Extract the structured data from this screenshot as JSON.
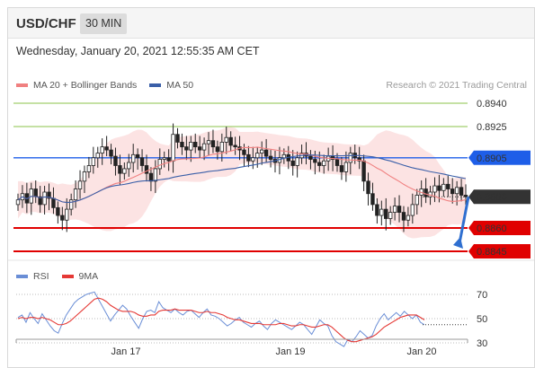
{
  "header": {
    "pair": "USD/CHF",
    "timeframe": "30 MIN"
  },
  "datetime": "Wednesday, January 20, 2021 12:55:35 AM CET",
  "legend": {
    "items": [
      {
        "label": "MA 20 + Bollinger Bands",
        "color": "#f08080"
      },
      {
        "label": "MA 50",
        "color": "#3a5fa8"
      }
    ],
    "research": "Research © 2021 Trading Central"
  },
  "rsi_legend": {
    "items": [
      {
        "label": "RSI",
        "color": "#6a8ed6"
      },
      {
        "label": "9MA",
        "color": "#e53935"
      }
    ]
  },
  "chart_data": [
    {
      "type": "candlestick",
      "title": "USD/CHF",
      "x_tick_labels": [
        "Jan 17",
        "Jan 19",
        "Jan 20"
      ],
      "ylim": [
        0.884,
        0.895
      ],
      "last_price": 0.888,
      "levels": [
        {
          "value": 0.894,
          "label": "0.8940",
          "kind": "resistance",
          "color": "#8bc34a"
        },
        {
          "value": 0.8925,
          "label": "0.8925",
          "kind": "resistance",
          "color": "#8bc34a"
        },
        {
          "value": 0.8905,
          "label": "0.8905",
          "kind": "pivot",
          "color": "#1e5ee8"
        },
        {
          "value": 0.888,
          "label": "0.8880",
          "kind": "last",
          "color": "#333333"
        },
        {
          "value": 0.886,
          "label": "0.8860",
          "kind": "support",
          "color": "#e00000"
        },
        {
          "value": 0.8845,
          "label": "0.8845",
          "kind": "support",
          "color": "#e00000"
        }
      ],
      "close_series": [
        0.8878,
        0.8882,
        0.8876,
        0.8885,
        0.888,
        0.8875,
        0.8883,
        0.8879,
        0.8873,
        0.8868,
        0.8865,
        0.8872,
        0.8878,
        0.8885,
        0.889,
        0.8896,
        0.89,
        0.8905,
        0.8908,
        0.8912,
        0.891,
        0.8906,
        0.89,
        0.8895,
        0.8898,
        0.8902,
        0.8907,
        0.8905,
        0.89,
        0.8895,
        0.889,
        0.8898,
        0.8904,
        0.8905,
        0.8903,
        0.892,
        0.8915,
        0.8912,
        0.891,
        0.8915,
        0.8912,
        0.891,
        0.8914,
        0.8916,
        0.8912,
        0.8909,
        0.8915,
        0.8918,
        0.8913,
        0.8912,
        0.891,
        0.8907,
        0.8903,
        0.8905,
        0.8908,
        0.891,
        0.8906,
        0.8904,
        0.8902,
        0.8905,
        0.8907,
        0.8903,
        0.89,
        0.8905,
        0.8908,
        0.8906,
        0.8904,
        0.8902,
        0.89,
        0.8903,
        0.8906,
        0.8904,
        0.89,
        0.8896,
        0.8902,
        0.8908,
        0.8905,
        0.8903,
        0.889,
        0.8882,
        0.8875,
        0.8868,
        0.8872,
        0.8866,
        0.887,
        0.8874,
        0.887,
        0.8865,
        0.8868,
        0.8875,
        0.8881,
        0.8885,
        0.888,
        0.8883,
        0.8887,
        0.8884,
        0.8888,
        0.8885,
        0.8882,
        0.8886,
        0.8881,
        0.888
      ],
      "forecast": {
        "from": 0.888,
        "to": 0.8845
      }
    },
    {
      "type": "line",
      "title": "RSI",
      "ylim": [
        20,
        80
      ],
      "y_ticks": [
        70,
        50,
        30
      ],
      "series": [
        {
          "name": "RSI",
          "color": "#6a8ed6",
          "values": [
            51,
            53,
            47,
            55,
            50,
            46,
            54,
            49,
            44,
            40,
            38,
            46,
            53,
            58,
            63,
            66,
            68,
            70,
            71,
            72,
            66,
            60,
            54,
            48,
            53,
            57,
            61,
            58,
            52,
            47,
            42,
            50,
            56,
            57,
            55,
            64,
            59,
            57,
            55,
            58,
            55,
            53,
            56,
            57,
            54,
            51,
            55,
            58,
            53,
            52,
            50,
            47,
            44,
            46,
            49,
            51,
            47,
            45,
            43,
            46,
            48,
            44,
            41,
            46,
            49,
            47,
            45,
            43,
            41,
            44,
            47,
            45,
            41,
            37,
            43,
            49,
            46,
            44,
            36,
            31,
            29,
            27,
            33,
            31,
            35,
            40,
            37,
            34,
            36,
            44,
            50,
            54,
            49,
            52,
            55,
            52,
            56,
            53,
            50,
            53,
            47,
            45
          ]
        },
        {
          "name": "9MA",
          "color": "#e53935",
          "values": [
            50,
            51,
            50,
            51,
            51,
            50,
            51,
            50,
            49,
            47,
            45,
            45,
            46,
            48,
            51,
            54,
            57,
            60,
            63,
            66,
            67,
            66,
            64,
            61,
            59,
            57,
            56,
            56,
            56,
            55,
            53,
            52,
            52,
            53,
            53,
            56,
            57,
            57,
            57,
            58,
            57,
            57,
            57,
            57,
            56,
            55,
            55,
            56,
            55,
            55,
            54,
            53,
            51,
            50,
            49,
            49,
            48,
            47,
            46,
            46,
            46,
            45,
            45,
            45,
            45,
            46,
            46,
            45,
            44,
            44,
            45,
            45,
            44,
            43,
            43,
            44,
            45,
            45,
            43,
            40,
            37,
            34,
            32,
            31,
            31,
            32,
            33,
            34,
            35,
            37,
            40,
            43,
            45,
            47,
            49,
            51,
            52,
            53,
            53,
            53,
            51,
            49
          ]
        }
      ]
    }
  ]
}
